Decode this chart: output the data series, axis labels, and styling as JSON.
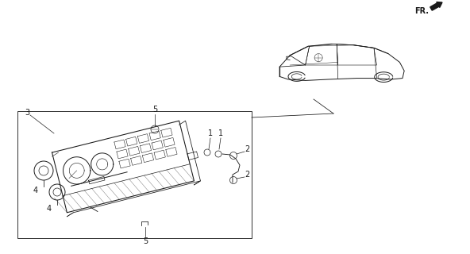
{
  "bg_color": "#ffffff",
  "line_color": "#1a1a1a",
  "fig_width": 5.92,
  "fig_height": 3.2,
  "dpi": 100,
  "fr_text": "FR.",
  "labels": [
    "1",
    "1",
    "2",
    "2",
    "3",
    "4",
    "4",
    "5",
    "5"
  ],
  "car_scale": 1.0
}
